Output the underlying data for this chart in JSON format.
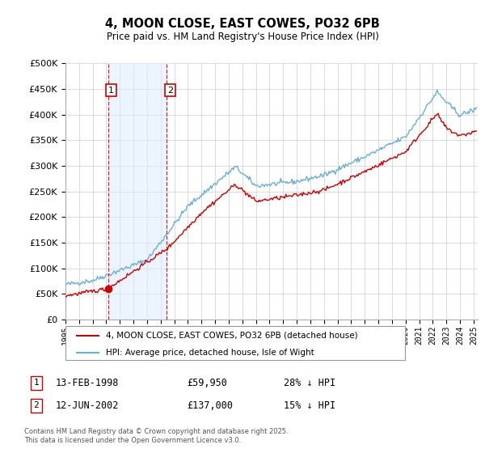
{
  "title": "4, MOON CLOSE, EAST COWES, PO32 6PB",
  "subtitle": "Price paid vs. HM Land Registry's House Price Index (HPI)",
  "legend_line1": "4, MOON CLOSE, EAST COWES, PO32 6PB (detached house)",
  "legend_line2": "HPI: Average price, detached house, Isle of Wight",
  "footer": "Contains HM Land Registry data © Crown copyright and database right 2025.\nThis data is licensed under the Open Government Licence v3.0.",
  "sale1_date": "13-FEB-1998",
  "sale1_price": 59950,
  "sale1_label": "28% ↓ HPI",
  "sale2_date": "12-JUN-2002",
  "sale2_price": 137000,
  "sale2_label": "15% ↓ HPI",
  "ylim": [
    0,
    500000
  ],
  "yticks": [
    0,
    50000,
    100000,
    150000,
    200000,
    250000,
    300000,
    350000,
    400000,
    450000,
    500000
  ],
  "hpi_color": "#6baed6",
  "price_color": "#cc0000",
  "sale1_x": 1998.12,
  "sale2_x": 2002.45,
  "background_color": "#ffffff",
  "grid_color": "#cccccc",
  "marker_box_color": "#cc0000",
  "shade_color": "#ddeeff",
  "sale1_price_val": 59950,
  "sale2_price_val": 137000
}
